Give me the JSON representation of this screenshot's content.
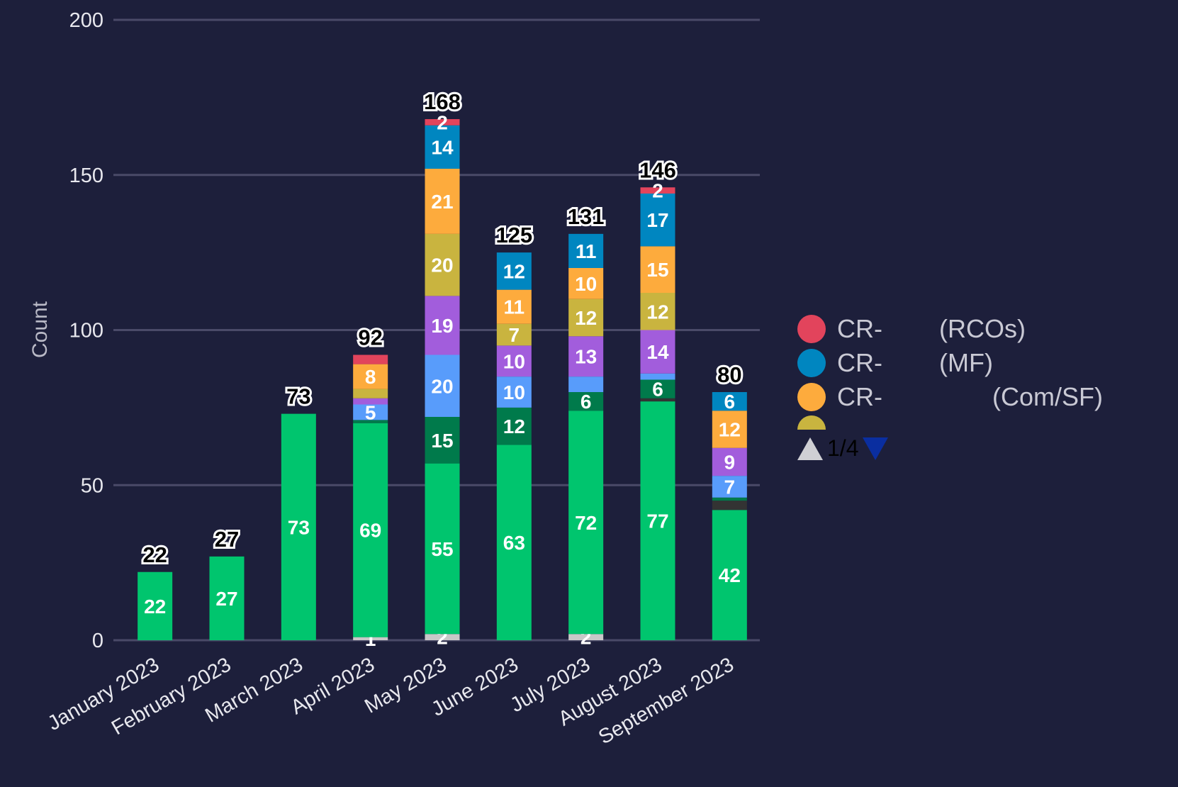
{
  "chart_data": {
    "type": "bar",
    "stacked": true,
    "title": "",
    "xlabel": "",
    "ylabel": "Count",
    "ylim": [
      0,
      200
    ],
    "yticks": [
      0,
      50,
      100,
      150,
      200
    ],
    "grid": true,
    "legend_position": "right",
    "categories": [
      "January 2023",
      "February 2023",
      "March 2023",
      "April 2023",
      "May 2023",
      "June 2023",
      "July 2023",
      "August 2023",
      "September 2023"
    ],
    "totals": [
      22,
      27,
      73,
      92,
      168,
      125,
      131,
      146,
      80
    ],
    "series": [
      {
        "name": "gray-series",
        "color": "#c8c8c8",
        "values": [
          0,
          0,
          0,
          1,
          2,
          0,
          2,
          0,
          0
        ],
        "labels": [
          null,
          null,
          null,
          "1",
          "2",
          null,
          "2",
          null,
          null
        ]
      },
      {
        "name": "green-series",
        "color": "#00c56e",
        "values": [
          22,
          27,
          73,
          69,
          55,
          63,
          72,
          77,
          42
        ],
        "labels": [
          "22",
          "27",
          "73",
          "69",
          "55",
          "63",
          "72",
          "77",
          "42"
        ]
      },
      {
        "name": "dark-gray-series",
        "color": "#333333",
        "values": [
          0,
          0,
          0,
          0,
          0,
          0,
          0,
          1,
          3
        ],
        "labels": [
          null,
          null,
          null,
          null,
          null,
          null,
          null,
          null,
          null
        ]
      },
      {
        "name": "dark-green-series",
        "color": "#007a4b",
        "values": [
          0,
          0,
          0,
          1,
          15,
          12,
          6,
          6,
          1
        ],
        "labels": [
          null,
          null,
          null,
          null,
          "15",
          "12",
          "6",
          "6",
          null
        ]
      },
      {
        "name": "light-blue-series",
        "color": "#589cfb",
        "values": [
          0,
          0,
          0,
          5,
          20,
          10,
          5,
          2,
          7
        ],
        "labels": [
          null,
          null,
          null,
          "5",
          "20",
          "10",
          null,
          null,
          "7"
        ]
      },
      {
        "name": "purple-series",
        "color": "#a25ddc",
        "values": [
          0,
          0,
          0,
          2,
          19,
          10,
          13,
          14,
          9
        ],
        "labels": [
          null,
          null,
          null,
          null,
          "19",
          "10",
          "13",
          "14",
          "9"
        ]
      },
      {
        "name": "olive-series",
        "color": "#c9b43f",
        "values": [
          0,
          0,
          0,
          3,
          20,
          7,
          12,
          12,
          0
        ],
        "labels": [
          null,
          null,
          null,
          null,
          "20",
          "7",
          "12",
          "12",
          null
        ]
      },
      {
        "name": "CR- (Com/SF)",
        "color": "#fdab3d",
        "values": [
          0,
          0,
          0,
          8,
          21,
          11,
          10,
          15,
          12
        ],
        "labels": [
          null,
          null,
          null,
          "8",
          "21",
          "11",
          "10",
          "15",
          "12"
        ]
      },
      {
        "name": "CR- (MF)",
        "color": "#0086c0",
        "values": [
          0,
          0,
          0,
          0,
          14,
          12,
          11,
          17,
          6
        ],
        "labels": [
          null,
          null,
          null,
          null,
          "14",
          "12",
          "11",
          "17",
          "6"
        ]
      },
      {
        "name": "CR- (RCOs)",
        "color": "#e2445c",
        "values": [
          0,
          0,
          0,
          3,
          2,
          0,
          0,
          2,
          0
        ],
        "labels": [
          null,
          null,
          null,
          null,
          "2",
          null,
          null,
          "2",
          null
        ]
      }
    ]
  },
  "legend": {
    "items": [
      {
        "prefix": "CR-",
        "suffix": "(RCOs)",
        "color": "#e2445c"
      },
      {
        "prefix": "CR-",
        "suffix": "(MF)",
        "color": "#0086c0"
      },
      {
        "prefix": "CR-",
        "suffix": "(Com/SF)",
        "color": "#fdab3d"
      }
    ],
    "peek_color": "#c9b43f",
    "pager": "1/4"
  }
}
